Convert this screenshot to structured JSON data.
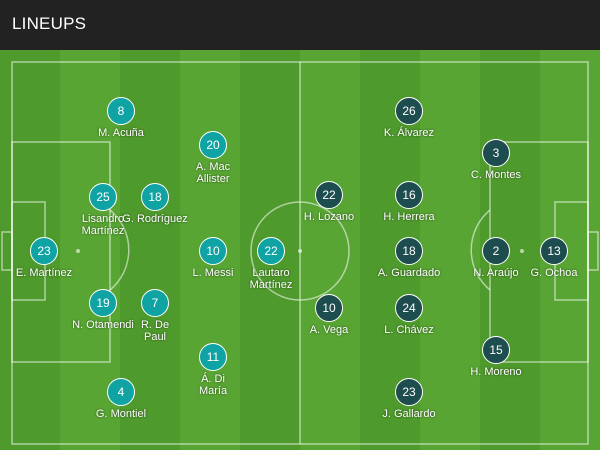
{
  "header": {
    "title": "LINEUPS"
  },
  "colors": {
    "header_bg": "#222222",
    "home_badge": "#10a3a3",
    "away_badge": "#1e4d4f",
    "pitch_dark": "#4f9a2c",
    "pitch_light": "#58a533"
  },
  "home_players": [
    {
      "number": "23",
      "name": "E. Martínez"
    },
    {
      "number": "8",
      "name": "M. Acuña"
    },
    {
      "number": "25",
      "name": "Lisandro Martínez"
    },
    {
      "number": "19",
      "name": "N. Otamendi"
    },
    {
      "number": "4",
      "name": "G. Montiel"
    },
    {
      "number": "18",
      "name": "G. Rodríguez"
    },
    {
      "number": "7",
      "name": "R. De Paul"
    },
    {
      "number": "20",
      "name": "A. Mac Allister"
    },
    {
      "number": "10",
      "name": "L. Messi"
    },
    {
      "number": "11",
      "name": "Á. Di María"
    },
    {
      "number": "22",
      "name": "Lautaro Martínez"
    }
  ],
  "away_players": [
    {
      "number": "22",
      "name": "H. Lozano"
    },
    {
      "number": "10",
      "name": "A. Vega"
    },
    {
      "number": "26",
      "name": "K. Álvarez"
    },
    {
      "number": "16",
      "name": "H. Herrera"
    },
    {
      "number": "18",
      "name": "A. Guardado"
    },
    {
      "number": "24",
      "name": "L. Chávez"
    },
    {
      "number": "23",
      "name": "J. Gallardo"
    },
    {
      "number": "3",
      "name": "C. Montes"
    },
    {
      "number": "2",
      "name": "N. Araújo"
    },
    {
      "number": "15",
      "name": "H. Moreno"
    },
    {
      "number": "13",
      "name": "G. Ochoa"
    }
  ]
}
